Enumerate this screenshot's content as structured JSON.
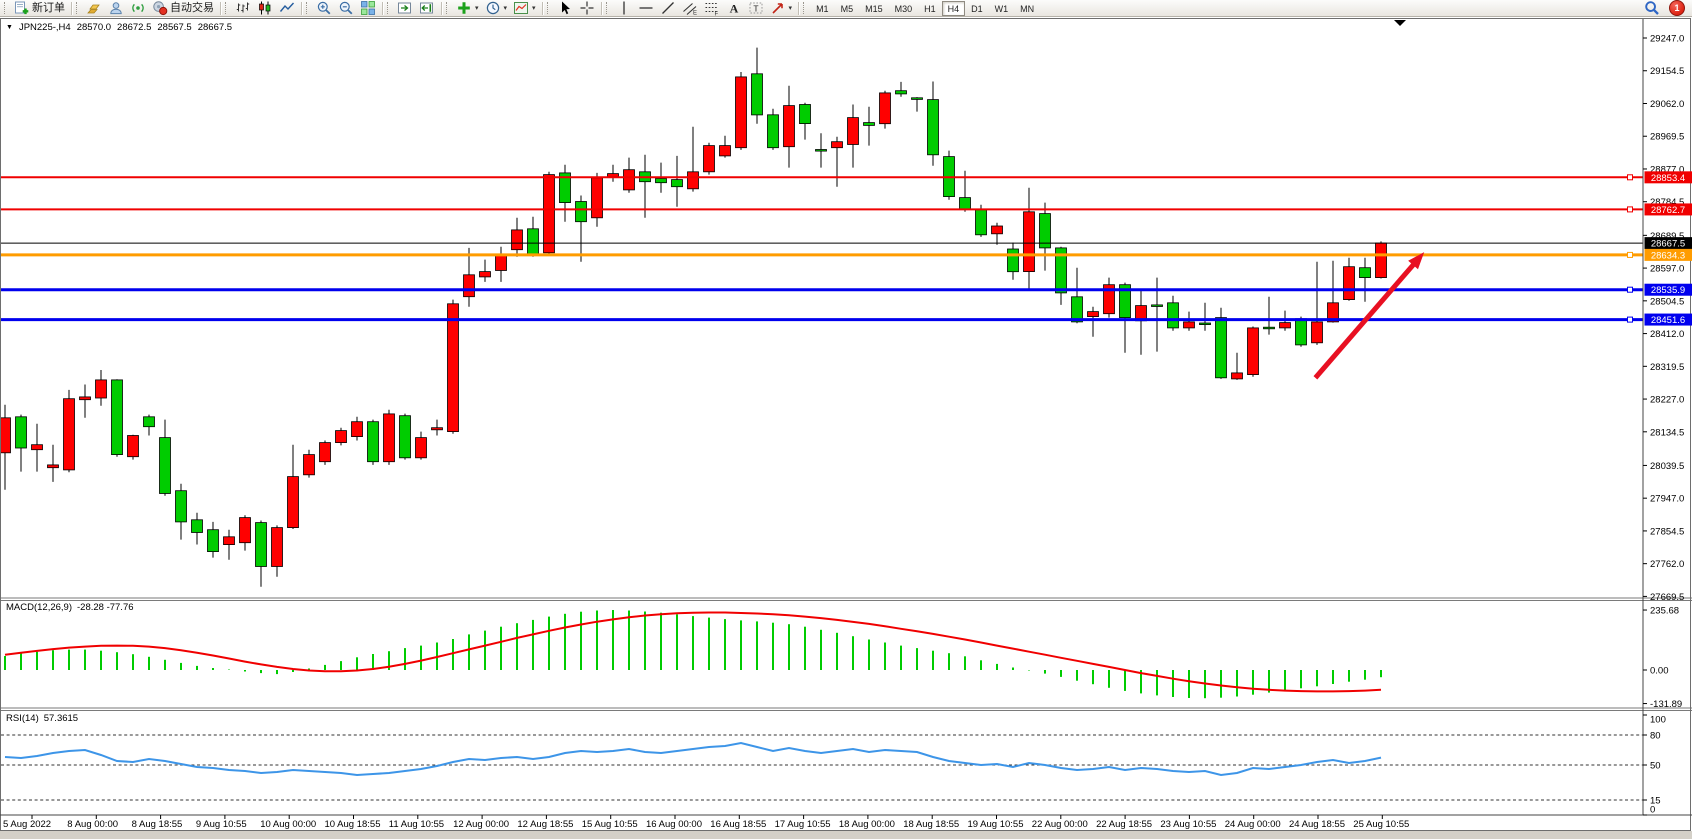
{
  "toolbar": {
    "new_order_label": "新订单",
    "auto_trading_label": "自动交易",
    "notification_badge": "1",
    "timeframes": [
      "M1",
      "M5",
      "M15",
      "M30",
      "H1",
      "H4",
      "D1",
      "W1",
      "MN"
    ],
    "active_timeframe": "H4",
    "groups": [
      {
        "items": [
          {
            "icon": "new-order",
            "name": "new-order-button",
            "label": "新订单"
          }
        ]
      },
      {
        "items": [
          {
            "icon": "gold",
            "name": "market-history-button"
          },
          {
            "icon": "profile",
            "name": "profiles-button"
          },
          {
            "icon": "signal",
            "name": "signals-button"
          },
          {
            "icon": "auto-trading",
            "name": "auto-trading-button",
            "label": "自动交易"
          }
        ]
      },
      {
        "items": [
          {
            "icon": "bar-chart",
            "name": "bar-chart-button"
          },
          {
            "icon": "candle-chart",
            "name": "candlestick-chart-button"
          },
          {
            "icon": "line-chart",
            "name": "line-chart-button"
          }
        ]
      },
      {
        "items": [
          {
            "icon": "zoom-in",
            "name": "zoom-in-button"
          },
          {
            "icon": "zoom-out",
            "name": "zoom-out-button"
          },
          {
            "icon": "tile-windows",
            "name": "tile-windows-button"
          }
        ]
      },
      {
        "items": [
          {
            "icon": "auto-scroll",
            "name": "auto-scroll-button"
          },
          {
            "icon": "chart-shift",
            "name": "chart-shift-button"
          }
        ]
      },
      {
        "items": [
          {
            "icon": "add-indicator",
            "name": "indicators-button",
            "dropdown": true
          },
          {
            "icon": "clock",
            "name": "periods-button",
            "dropdown": true
          },
          {
            "icon": "templates",
            "name": "templates-button",
            "dropdown": true
          }
        ]
      },
      {
        "items": [
          {
            "icon": "cursor",
            "name": "cursor-button"
          },
          {
            "icon": "crosshair",
            "name": "crosshair-button"
          }
        ]
      },
      {
        "items": [
          {
            "icon": "vline",
            "name": "vertical-line-button"
          },
          {
            "icon": "hline",
            "name": "horizontal-line-button"
          },
          {
            "icon": "trendline",
            "name": "trendline-button"
          },
          {
            "icon": "channel",
            "name": "equidistant-channel-button"
          },
          {
            "icon": "fibonacci",
            "name": "fibonacci-button"
          },
          {
            "icon": "text",
            "name": "text-button"
          },
          {
            "icon": "label",
            "name": "text-label-button"
          },
          {
            "icon": "shapes",
            "name": "arrows-button",
            "dropdown": true
          }
        ]
      }
    ]
  },
  "chart_header": {
    "symbol_period": "JPN225-,H4",
    "open": "28570.0",
    "high": "28672.5",
    "low": "28567.5",
    "close": "28667.5"
  },
  "chart_data": {
    "type": "candlestick",
    "symbol": "JPN225-",
    "period": "H4",
    "up_color": "#ff0000",
    "down_color": "#00cc00",
    "price_axis_ticks": [
      "29247.0",
      "29154.5",
      "29062.0",
      "28969.5",
      "28877.0",
      "28784.5",
      "28689.5",
      "28597.0",
      "28504.5",
      "28412.0",
      "28319.5",
      "28227.0",
      "28134.5",
      "28039.5",
      "27947.0",
      "27854.5",
      "27762.0",
      "27669.5"
    ],
    "time_axis_labels": [
      "5 Aug 2022",
      "8 Aug 00:00",
      "8 Aug 18:55",
      "9 Aug 10:55",
      "10 Aug 00:00",
      "10 Aug 18:55",
      "11 Aug 10:55",
      "12 Aug 00:00",
      "12 Aug 18:55",
      "15 Aug 10:55",
      "16 Aug 00:00",
      "16 Aug 18:55",
      "17 Aug 10:55",
      "18 Aug 00:00",
      "18 Aug 18:55",
      "19 Aug 10:55",
      "22 Aug 00:00",
      "22 Aug 18:55",
      "23 Aug 10:55",
      "24 Aug 00:00",
      "24 Aug 18:55",
      "25 Aug 10:55"
    ],
    "levels": [
      {
        "price": 28853.4,
        "label": "28853.4",
        "color": "#f00000",
        "width": 2,
        "current": false
      },
      {
        "price": 28762.7,
        "label": "28762.7",
        "color": "#f00000",
        "width": 2,
        "current": false
      },
      {
        "price": 28667.5,
        "label": "28667.5",
        "color": "#000000",
        "width": 1,
        "current": true
      },
      {
        "price": 28634.3,
        "label": "28634.3",
        "color": "#ff9c00",
        "width": 3,
        "current": false
      },
      {
        "price": 28535.9,
        "label": "28535.9",
        "color": "#0000ee",
        "width": 3,
        "current": false
      },
      {
        "price": 28451.6,
        "label": "28451.6",
        "color": "#0000ee",
        "width": 3,
        "current": false
      }
    ],
    "candles_ohlc": [
      [
        28075,
        28211,
        27971,
        28174
      ],
      [
        28177,
        28183,
        28022,
        28089
      ],
      [
        28084,
        28157,
        28022,
        28098
      ],
      [
        28033,
        28098,
        27993,
        28041
      ],
      [
        28027,
        28253,
        28020,
        28228
      ],
      [
        28225,
        28268,
        28174,
        28233
      ],
      [
        28230,
        28309,
        28208,
        28281
      ],
      [
        28281,
        28283,
        28064,
        28070
      ],
      [
        28064,
        28126,
        28056,
        28124
      ],
      [
        28177,
        28183,
        28124,
        28149
      ],
      [
        28118,
        28169,
        27954,
        27960
      ],
      [
        27968,
        27988,
        27830,
        27880
      ],
      [
        27886,
        27906,
        27816,
        27850
      ],
      [
        27858,
        27880,
        27779,
        27796
      ],
      [
        27816,
        27858,
        27773,
        27838
      ],
      [
        27821,
        27899,
        27799,
        27892
      ],
      [
        27878,
        27884,
        27697,
        27754
      ],
      [
        27754,
        27870,
        27725,
        27864
      ],
      [
        27864,
        28098,
        27860,
        28008
      ],
      [
        28013,
        28084,
        28005,
        28070
      ],
      [
        28050,
        28110,
        28041,
        28104
      ],
      [
        28104,
        28146,
        28096,
        28138
      ],
      [
        28121,
        28177,
        28110,
        28163
      ],
      [
        28163,
        28169,
        28041,
        28050
      ],
      [
        28050,
        28197,
        28041,
        28185
      ],
      [
        28180,
        28186,
        28056,
        28061
      ],
      [
        28061,
        28135,
        28056,
        28118
      ],
      [
        28140,
        28169,
        28124,
        28146
      ],
      [
        28135,
        28508,
        28129,
        28496
      ],
      [
        28516,
        28654,
        28488,
        28578
      ],
      [
        28572,
        28621,
        28558,
        28587
      ],
      [
        28590,
        28657,
        28558,
        28637
      ],
      [
        28649,
        28739,
        28629,
        28705
      ],
      [
        28708,
        28742,
        28629,
        28637
      ],
      [
        28640,
        28869,
        28637,
        28861
      ],
      [
        28866,
        28889,
        28728,
        28782
      ],
      [
        28785,
        28802,
        28615,
        28728
      ],
      [
        28739,
        28866,
        28714,
        28852
      ],
      [
        28855,
        28889,
        28841,
        28864
      ],
      [
        28818,
        28909,
        28810,
        28875
      ],
      [
        28869,
        28917,
        28739,
        28841
      ],
      [
        28850,
        28895,
        28810,
        28838
      ],
      [
        28847,
        28914,
        28770,
        28827
      ],
      [
        28821,
        28996,
        28813,
        28869
      ],
      [
        28869,
        28951,
        28861,
        28943
      ],
      [
        28914,
        28971,
        28909,
        28943
      ],
      [
        28937,
        29151,
        28931,
        29137
      ],
      [
        29146,
        29220,
        29005,
        29030
      ],
      [
        29030,
        29047,
        28931,
        28937
      ],
      [
        28940,
        29112,
        28881,
        29056
      ],
      [
        29059,
        29064,
        28960,
        29005
      ],
      [
        28932,
        28978,
        28881,
        28928
      ],
      [
        28937,
        28968,
        28827,
        28954
      ],
      [
        28946,
        29059,
        28881,
        29022
      ],
      [
        29008,
        29053,
        28943,
        29000
      ],
      [
        29005,
        29098,
        28991,
        29092
      ],
      [
        29098,
        29123,
        29081,
        29089
      ],
      [
        29078,
        29080,
        29039,
        29076
      ],
      [
        29073,
        29124,
        28886,
        28917
      ],
      [
        28912,
        28929,
        28790,
        28799
      ],
      [
        28796,
        28872,
        28756,
        28762
      ],
      [
        28762,
        28776,
        28685,
        28691
      ],
      [
        28694,
        28725,
        28663,
        28716
      ],
      [
        28651,
        28669,
        28564,
        28587
      ],
      [
        28587,
        28824,
        28539,
        28756
      ],
      [
        28751,
        28782,
        28590,
        28654
      ],
      [
        28654,
        28657,
        28493,
        28527
      ],
      [
        28516,
        28598,
        28441,
        28445
      ],
      [
        28460,
        28488,
        28403,
        28474
      ],
      [
        28468,
        28570,
        28457,
        28550
      ],
      [
        28550,
        28556,
        28358,
        28457
      ],
      [
        28448,
        28536,
        28352,
        28491
      ],
      [
        28493,
        28570,
        28361,
        28491
      ],
      [
        28499,
        28519,
        28420,
        28428
      ],
      [
        28428,
        28474,
        28420,
        28445
      ],
      [
        28442,
        28499,
        28420,
        28440
      ],
      [
        28457,
        28485,
        28284,
        28287
      ],
      [
        28284,
        28358,
        28281,
        28301
      ],
      [
        28296,
        28432,
        28290,
        28428
      ],
      [
        28430,
        28516,
        28409,
        28428
      ],
      [
        28428,
        28477,
        28420,
        28443
      ],
      [
        28454,
        28460,
        28375,
        28380
      ],
      [
        28386,
        28615,
        28380,
        28445
      ],
      [
        28445,
        28618,
        28443,
        28499
      ],
      [
        28508,
        28626,
        28505,
        28601
      ],
      [
        28598,
        28626,
        28502,
        28570
      ],
      [
        28570,
        28672.5,
        28567.5,
        28667.5
      ]
    ],
    "arrow_annotation": {
      "color": "#e81022",
      "from": {
        "bar": 81.9,
        "price": 28287
      },
      "to": {
        "bar": 88.7,
        "price": 28642
      }
    },
    "indicators": [
      {
        "name": "MACD",
        "label": "MACD(12,26,9)",
        "values_text": "-28.28 -77.76",
        "axis_labels": [
          "235.68",
          "0.00",
          "-131.89"
        ],
        "axis_values": [
          235.68,
          0,
          -131.89
        ],
        "histogram_color": "#00cc00",
        "signal_color": "#f00000",
        "histogram": [
          55,
          65,
          72,
          78,
          80,
          80,
          76,
          70,
          62,
          52,
          40,
          28,
          16,
          8,
          2,
          -6,
          -12,
          -16,
          -8,
          6,
          20,
          35,
          50,
          63,
          74,
          86,
          96,
          108,
          122,
          140,
          155,
          170,
          184,
          197,
          210,
          221,
          229,
          234,
          235.68,
          234,
          230,
          225,
          219,
          212,
          206,
          200,
          195,
          191,
          186,
          180,
          170,
          158,
          146,
          133,
          120,
          108,
          96,
          86,
          76,
          66,
          54,
          38,
          24,
          10,
          -2,
          -14,
          -27,
          -42,
          -56,
          -70,
          -82,
          -92,
          -100,
          -106,
          -110,
          -111,
          -109,
          -104,
          -97,
          -89,
          -80,
          -72,
          -64,
          -55,
          -46,
          -38,
          -28.28
        ],
        "signal": [
          60,
          68,
          75,
          82,
          88,
          92,
          95,
          96,
          95,
          92,
          86,
          78,
          68,
          57,
          45,
          33,
          22,
          12,
          4,
          -2,
          -5,
          -5,
          -2,
          4,
          13,
          24,
          37,
          51,
          66,
          81,
          96,
          111,
          126,
          140,
          154,
          167,
          179,
          190,
          199,
          207,
          214,
          219,
          223,
          225,
          226,
          226,
          224,
          222,
          219,
          215,
          210,
          204,
          197,
          189,
          181,
          172,
          162,
          152,
          142,
          131,
          120,
          108,
          96,
          84,
          72,
          60,
          48,
          36,
          24,
          12,
          0,
          -12,
          -23,
          -34,
          -44,
          -53,
          -61,
          -68,
          -74,
          -78,
          -81,
          -83,
          -84,
          -84,
          -83,
          -81,
          -77.76
        ]
      },
      {
        "name": "RSI",
        "label": "RSI(14)",
        "value_text": "57.3615",
        "axis_labels": [
          "100",
          "80",
          "50",
          "15",
          "0"
        ],
        "axis_values": [
          100,
          80,
          50,
          15,
          0
        ],
        "level_lines": [
          80,
          50,
          15
        ],
        "line_color": "#3d95e8",
        "line": [
          58,
          57,
          59,
          62,
          64,
          65,
          60,
          54,
          53,
          56,
          54,
          51,
          48,
          47,
          45,
          44,
          42,
          43,
          45,
          44,
          43,
          42,
          40,
          41,
          42,
          44,
          46,
          49,
          53,
          56,
          55,
          57,
          58,
          56,
          58,
          62,
          64,
          63,
          64,
          66,
          63,
          62,
          64,
          66,
          68,
          69,
          72,
          68,
          64,
          67,
          64,
          62,
          64,
          66,
          63,
          65,
          64,
          63,
          58,
          54,
          52,
          50,
          51,
          48,
          52,
          50,
          47,
          45,
          46,
          48,
          45,
          47,
          46,
          44,
          43,
          44,
          40,
          42,
          47,
          46,
          48,
          50,
          53,
          55,
          52,
          54,
          57.36
        ]
      }
    ]
  }
}
